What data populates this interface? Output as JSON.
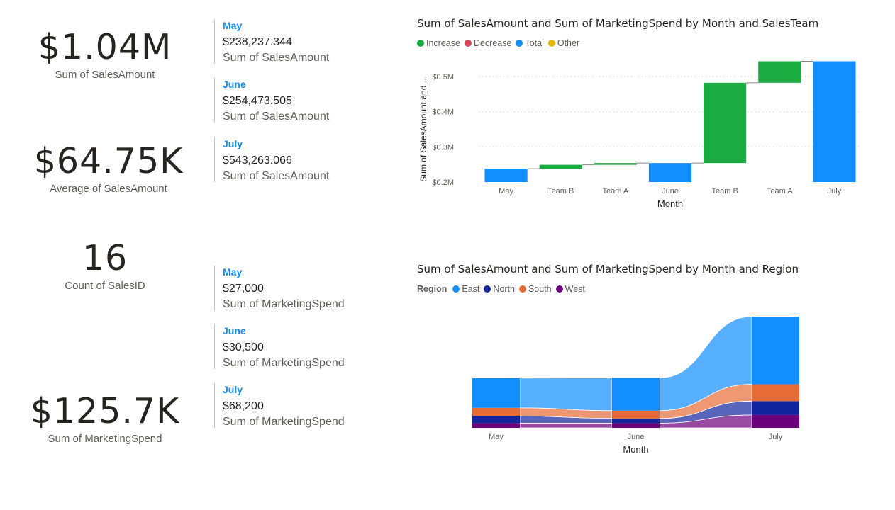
{
  "kpis": [
    {
      "value": "$1.04M",
      "label": "Sum of SalesAmount"
    },
    {
      "value": "$64.75K",
      "label": "Average of SalesAmount"
    },
    {
      "value": "16",
      "label": "Count of SalesID"
    },
    {
      "value": "$125.7K",
      "label": "Sum of MarketingSpend"
    }
  ],
  "sales_cards": [
    {
      "month": "May",
      "value": "$238,237.344",
      "label": "Sum of SalesAmount"
    },
    {
      "month": "June",
      "value": "$254,473.505",
      "label": "Sum of SalesAmount"
    },
    {
      "month": "July",
      "value": "$543,263.066",
      "label": "Sum of SalesAmount"
    }
  ],
  "marketing_cards": [
    {
      "month": "May",
      "value": "$27,000",
      "label": "Sum of MarketingSpend"
    },
    {
      "month": "June",
      "value": "$30,500",
      "label": "Sum of MarketingSpend"
    },
    {
      "month": "July",
      "value": "$68,200",
      "label": "Sum of MarketingSpend"
    }
  ],
  "colors": {
    "increase": "#1aab40",
    "decrease": "#d64554",
    "total": "#118dff",
    "other": "#e5b700",
    "east": "#118dff",
    "north": "#12239e",
    "south": "#e66c37",
    "west": "#6b007b"
  },
  "chart_data": [
    {
      "type": "waterfall",
      "title": "Sum of SalesAmount and Sum of MarketingSpend by Month and SalesTeam",
      "legend": [
        {
          "name": "Increase",
          "color": "#1aab40"
        },
        {
          "name": "Decrease",
          "color": "#d64554"
        },
        {
          "name": "Total",
          "color": "#118dff"
        },
        {
          "name": "Other",
          "color": "#e5b700"
        }
      ],
      "legend_position": "top-left",
      "xlabel": "Month",
      "ylabel": "Sum of SalesAmount and ...",
      "ylim": [
        0.2,
        0.542
      ],
      "y_ticks": [
        {
          "value": 0.2,
          "label": "$0.2M"
        },
        {
          "value": 0.3,
          "label": "$0.3M"
        },
        {
          "value": 0.4,
          "label": "$0.4M"
        },
        {
          "value": 0.5,
          "label": "$0.5M"
        }
      ],
      "grid": true,
      "bars": [
        {
          "category": "May",
          "kind": "total",
          "start": 0.2,
          "end": 0.238
        },
        {
          "category": "Team B",
          "kind": "increase",
          "start": 0.238,
          "end": 0.249
        },
        {
          "category": "Team A",
          "kind": "increase",
          "start": 0.249,
          "end": 0.254
        },
        {
          "category": "June",
          "kind": "total",
          "start": 0.2,
          "end": 0.254
        },
        {
          "category": "Team B",
          "kind": "increase",
          "start": 0.254,
          "end": 0.482
        },
        {
          "category": "Team A",
          "kind": "increase",
          "start": 0.482,
          "end": 0.543
        },
        {
          "category": "July",
          "kind": "total",
          "start": 0.2,
          "end": 0.543
        }
      ]
    },
    {
      "type": "ribbon",
      "title": "Sum of SalesAmount and Sum of MarketingSpend by Month and Region",
      "legend_title": "Region",
      "legend": [
        {
          "name": "East",
          "color": "#118dff"
        },
        {
          "name": "North",
          "color": "#12239e"
        },
        {
          "name": "South",
          "color": "#e66c37"
        },
        {
          "name": "West",
          "color": "#6b007b"
        }
      ],
      "legend_position": "top-left",
      "xlabel": "Month",
      "categories": [
        "May",
        "June",
        "July"
      ],
      "stack_order": [
        "West",
        "North",
        "South",
        "East"
      ],
      "series": [
        {
          "name": "West",
          "values": [
            0.03,
            0.03,
            0.082
          ]
        },
        {
          "name": "North",
          "values": [
            0.046,
            0.03,
            0.089
          ]
        },
        {
          "name": "South",
          "values": [
            0.052,
            0.05,
            0.108
          ]
        },
        {
          "name": "East",
          "values": [
            0.19,
            0.21,
            0.433
          ]
        }
      ]
    }
  ]
}
